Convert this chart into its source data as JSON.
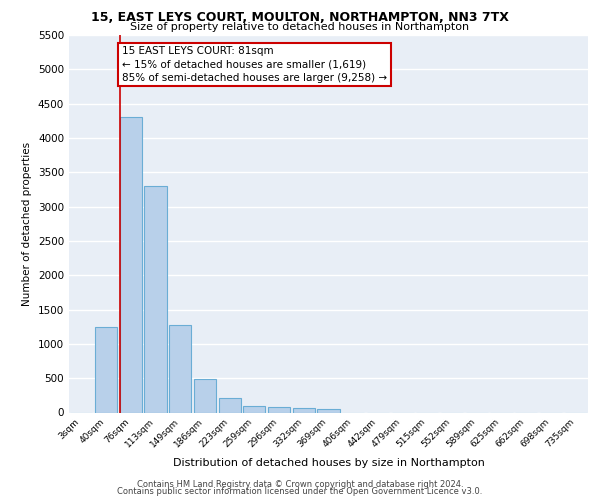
{
  "title": "15, EAST LEYS COURT, MOULTON, NORTHAMPTON, NN3 7TX",
  "subtitle": "Size of property relative to detached houses in Northampton",
  "xlabel": "Distribution of detached houses by size in Northampton",
  "ylabel": "Number of detached properties",
  "categories": [
    "3sqm",
    "40sqm",
    "76sqm",
    "113sqm",
    "149sqm",
    "186sqm",
    "223sqm",
    "259sqm",
    "296sqm",
    "332sqm",
    "369sqm",
    "406sqm",
    "442sqm",
    "479sqm",
    "515sqm",
    "552sqm",
    "589sqm",
    "625sqm",
    "662sqm",
    "698sqm",
    "735sqm"
  ],
  "bar_heights": [
    0,
    1250,
    4300,
    3300,
    1280,
    490,
    215,
    90,
    75,
    60,
    50,
    0,
    0,
    0,
    0,
    0,
    0,
    0,
    0,
    0,
    0
  ],
  "bar_color": "#b8d0ea",
  "bar_edgecolor": "#6aadd5",
  "background_color": "#e8eef6",
  "grid_color": "#ffffff",
  "property_line_idx": 2,
  "property_line_color": "#cc0000",
  "annotation_text": "15 EAST LEYS COURT: 81sqm\n← 15% of detached houses are smaller (1,619)\n85% of semi-detached houses are larger (9,258) →",
  "annotation_box_color": "#cc0000",
  "ylim": [
    0,
    5500
  ],
  "yticks": [
    0,
    500,
    1000,
    1500,
    2000,
    2500,
    3000,
    3500,
    4000,
    4500,
    5000,
    5500
  ],
  "footer_line1": "Contains HM Land Registry data © Crown copyright and database right 2024.",
  "footer_line2": "Contains public sector information licensed under the Open Government Licence v3.0."
}
